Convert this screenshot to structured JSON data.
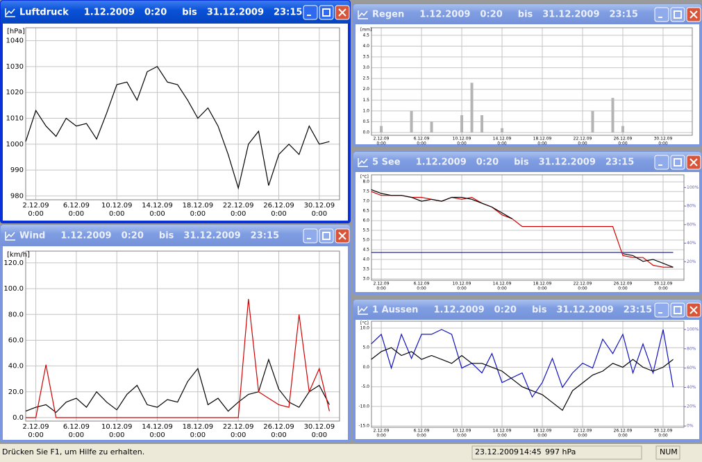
{
  "windows": [
    {
      "title": {
        "name": "Luftdruck",
        "from_date": "1.12.2009",
        "from_time": "0:20",
        "sep": "bis",
        "to_date": "31.12.2009",
        "to_time": "23:15"
      },
      "chart_data": {
        "type": "line",
        "y_label": "[hPa]",
        "xlim": [
          1,
          32
        ],
        "ylim": [
          978.5,
          1045
        ],
        "grid": true,
        "yticks": [
          980,
          990,
          1000,
          1010,
          1020,
          1030,
          1040
        ],
        "xticks": [
          {
            "value": 2,
            "label": "2.12.09"
          },
          {
            "value": 6,
            "label": "6.12.09"
          },
          {
            "value": 10,
            "label": "10.12.09"
          },
          {
            "value": 14,
            "label": "14.12.09"
          },
          {
            "value": 18,
            "label": "18.12.09"
          },
          {
            "value": 22,
            "label": "22.12.09"
          },
          {
            "value": 26,
            "label": "26.12.09"
          },
          {
            "value": 30,
            "label": "30.12.09"
          }
        ],
        "xtick_sublabels": [
          "0:00",
          "0:00",
          "0:00",
          "0:00",
          "0:00",
          "0:00",
          "0:00",
          "0:00"
        ],
        "x": [
          1,
          2,
          3,
          4,
          5,
          6,
          7,
          8,
          9,
          10,
          11,
          12,
          13,
          14,
          15,
          16,
          17,
          18,
          19,
          20,
          21,
          22,
          23,
          24,
          25,
          26,
          27,
          28,
          29,
          30,
          31
        ],
        "series": [
          {
            "color": "#000000",
            "values": [
              1001,
              1013,
              1007,
              1003,
              1010,
              1007,
              1008,
              1002,
              1012,
              1023,
              1024,
              1017,
              1028,
              1030,
              1024,
              1023,
              1017,
              1010,
              1014,
              1007,
              996,
              983,
              1000,
              1005,
              984,
              996,
              1000,
              996,
              1007,
              1000,
              1001
            ]
          }
        ]
      }
    },
    {
      "title": {
        "name": "Wind",
        "from_date": "1.12.2009",
        "from_time": "0:20",
        "sep": "bis",
        "to_date": "31.12.2009",
        "to_time": "23:15"
      },
      "chart_data": {
        "type": "line",
        "y_label": "[km/h]",
        "xlim": [
          1,
          32
        ],
        "ylim": [
          -2.7,
          129.1
        ],
        "grid": true,
        "yticks": [
          {
            "value": 0,
            "label": "0.0"
          },
          {
            "value": 20,
            "label": "20.0"
          },
          {
            "value": 40,
            "label": "40.0"
          },
          {
            "value": 60,
            "label": "60.0"
          },
          {
            "value": 80,
            "label": "80.0"
          },
          {
            "value": 100,
            "label": "100.0"
          },
          {
            "value": 120,
            "label": "120.0"
          }
        ],
        "xticks": [
          {
            "value": 2,
            "label": "2.12.09"
          },
          {
            "value": 6,
            "label": "6.12.09"
          },
          {
            "value": 10,
            "label": "10.12.09"
          },
          {
            "value": 14,
            "label": "14.12.09"
          },
          {
            "value": 18,
            "label": "18.12.09"
          },
          {
            "value": 22,
            "label": "22.12.09"
          },
          {
            "value": 26,
            "label": "26.12.09"
          },
          {
            "value": 30,
            "label": "30.12.09"
          }
        ],
        "xtick_sublabels": [
          "0:00",
          "0:00",
          "0:00",
          "0:00",
          "0:00",
          "0:00",
          "0:00",
          "0:00"
        ],
        "x": [
          1,
          2,
          3,
          4,
          5,
          6,
          7,
          8,
          9,
          10,
          11,
          12,
          13,
          14,
          15,
          16,
          17,
          18,
          19,
          20,
          21,
          22,
          23,
          24,
          25,
          26,
          27,
          28,
          29,
          30,
          31
        ],
        "series": [
          {
            "color": "#000000",
            "values": [
              5,
              8,
              10,
              4,
              12,
              15,
              8,
              20,
              12,
              6,
              18,
              25,
              10,
              8,
              14,
              12,
              28,
              38,
              10,
              15,
              5,
              12,
              18,
              20,
              45,
              22,
              12,
              8,
              20,
              25,
              10
            ]
          },
          {
            "color": "#d00000",
            "values": [
              0,
              0,
              41,
              0,
              0,
              0,
              0,
              0,
              0,
              0,
              0,
              0,
              0,
              0,
              0,
              0,
              0,
              0,
              0,
              0,
              0,
              0,
              92,
              20,
              15,
              10,
              8,
              80,
              20,
              38,
              5
            ]
          }
        ]
      }
    },
    {
      "title": {
        "name": "Regen",
        "from_date": "1.12.2009",
        "from_time": "0:20",
        "sep": "bis",
        "to_date": "31.12.2009",
        "to_time": "23:15"
      },
      "chart_data": {
        "type": "bar",
        "y_label": "[mm]",
        "xlim": [
          1.03,
          32.9
        ],
        "ylim": [
          -0.13,
          4.85
        ],
        "grid": true,
        "yticks": [
          {
            "value": 0,
            "label": "0.0"
          },
          0.5,
          {
            "value": 1,
            "label": "1.0"
          },
          1.5,
          {
            "value": 2,
            "label": "2.0"
          },
          2.5,
          {
            "value": 3,
            "label": "3.0"
          },
          3.5,
          {
            "value": 4,
            "label": "4.0"
          },
          4.5
        ],
        "xticks": [
          {
            "value": 2,
            "label": "2.12.09"
          },
          {
            "value": 6,
            "label": "6.12.09"
          },
          {
            "value": 10,
            "label": "10.12.09"
          },
          {
            "value": 14,
            "label": "14.12.09"
          },
          {
            "value": 18,
            "label": "18.12.09"
          },
          {
            "value": 22,
            "label": "22.12.09"
          },
          {
            "value": 26,
            "label": "26.12.09"
          },
          {
            "value": 30,
            "label": "30.12.09"
          }
        ],
        "xtick_sublabels": [
          "0:00",
          "0:00",
          "0:00",
          "0:00",
          "0:00",
          "0:00",
          "0:00",
          "0:00"
        ],
        "x": [
          1,
          2,
          3,
          4,
          5,
          6,
          7,
          8,
          9,
          10,
          11,
          12,
          13,
          14,
          15,
          16,
          17,
          18,
          19,
          20,
          21,
          22,
          23,
          24,
          25,
          26,
          27,
          28,
          29,
          30,
          31
        ],
        "series": [
          {
            "color": "#b4b4b4",
            "values": [
              0,
              0.3,
              0,
              0,
              1.0,
              0,
              0.5,
              0,
              0,
              0.8,
              2.3,
              0.8,
              0,
              0.2,
              0,
              0,
              0,
              0,
              0,
              0,
              0,
              0,
              1.0,
              0,
              1.6,
              0.3,
              0,
              0,
              0,
              0,
              0
            ]
          }
        ]
      }
    },
    {
      "title": {
        "name": "5 See",
        "from_date": "1.12.2009",
        "from_time": "0:20",
        "sep": "bis",
        "to_date": "31.12.2009",
        "to_time": "23:15"
      },
      "chart_data": {
        "type": "line",
        "y_label": "[°C]",
        "xlim": [
          1.03,
          32.07
        ],
        "ylim": [
          2.93,
          8.36
        ],
        "y2lim": [
          0,
          113.7
        ],
        "grid": true,
        "yticks": [
          {
            "value": 3,
            "label": "3.0"
          },
          3.5,
          {
            "value": 4,
            "label": "4.0"
          },
          4.5,
          {
            "value": 5,
            "label": "5.0"
          },
          5.5,
          {
            "value": 6,
            "label": "6.0"
          },
          6.5,
          {
            "value": 7,
            "label": "7.0"
          },
          7.5,
          {
            "value": 8,
            "label": "8.0"
          }
        ],
        "y2ticks": [
          {
            "value": 20,
            "label": "20%"
          },
          {
            "value": 40,
            "label": "40%"
          },
          {
            "value": 60,
            "label": "60%"
          },
          {
            "value": 80,
            "label": "80%"
          },
          {
            "value": 100,
            "label": "100%"
          }
        ],
        "xticks": [
          {
            "value": 2,
            "label": "2.12.09"
          },
          {
            "value": 6,
            "label": "6.12.09"
          },
          {
            "value": 10,
            "label": "10.12.09"
          },
          {
            "value": 14,
            "label": "14.12.09"
          },
          {
            "value": 18,
            "label": "18.12.09"
          },
          {
            "value": 22,
            "label": "22.12.09"
          },
          {
            "value": 26,
            "label": "26.12.09"
          },
          {
            "value": 30,
            "label": "30.12.09"
          }
        ],
        "xtick_sublabels": [
          "0:00",
          "0:00",
          "0:00",
          "0:00",
          "0:00",
          "0:00",
          "0:00",
          "0:00"
        ],
        "x": [
          1,
          2,
          3,
          4,
          5,
          6,
          7,
          8,
          9,
          10,
          11,
          12,
          13,
          14,
          15,
          16,
          17,
          18,
          19,
          20,
          21,
          22,
          23,
          24,
          25,
          26,
          27,
          28,
          29,
          30,
          31
        ],
        "series": [
          {
            "color": "#2020c0",
            "axis": "y2",
            "values": [
              30,
              30,
              30,
              30,
              30,
              30,
              30,
              30,
              30,
              30,
              30,
              30,
              30,
              30,
              30,
              30,
              30,
              30,
              30,
              30,
              30,
              30,
              30,
              30,
              30,
              30,
              30,
              30,
              30,
              30,
              30
            ]
          },
          {
            "color": "#d00000",
            "values": [
              7.5,
              7.3,
              7.3,
              7.3,
              7.2,
              7.2,
              7.1,
              7.0,
              7.2,
              7.1,
              7.2,
              6.9,
              6.7,
              6.3,
              6.1,
              5.7,
              5.7,
              5.7,
              5.7,
              5.7,
              5.7,
              5.7,
              5.7,
              5.7,
              5.7,
              4.2,
              4.1,
              4.1,
              3.7,
              3.6,
              3.6
            ]
          },
          {
            "color": "#000000",
            "values": [
              7.6,
              7.4,
              7.3,
              7.3,
              7.2,
              7.0,
              7.1,
              7.0,
              7.2,
              7.2,
              7.1,
              6.9,
              6.7,
              6.4,
              6.1,
              null,
              null,
              null,
              null,
              null,
              null,
              null,
              null,
              null,
              null,
              4.3,
              4.2,
              3.9,
              4.0,
              3.8,
              3.6
            ]
          }
        ]
      }
    },
    {
      "title": {
        "name": "1 Aussen",
        "from_date": "1.12.2009",
        "from_time": "0:20",
        "sep": "bis",
        "to_date": "31.12.2009",
        "to_time": "23:15"
      },
      "chart_data": {
        "type": "line",
        "y_label": "[°C]",
        "xlim": [
          1.03,
          32.07
        ],
        "ylim": [
          -15.35,
          11.77
        ],
        "y2lim": [
          -1.4,
          108.6
        ],
        "grid": true,
        "yticks": [
          {
            "value": -15,
            "label": "-15.0"
          },
          {
            "value": -10,
            "label": "-10.0"
          },
          {
            "value": -5,
            "label": "-5.0"
          },
          {
            "value": 0,
            "label": "0.0"
          },
          {
            "value": 5,
            "label": "5.0"
          },
          {
            "value": 10,
            "label": "10.0"
          }
        ],
        "y2ticks": [
          {
            "value": 0,
            "label": "0%"
          },
          {
            "value": 20,
            "label": "20%"
          },
          {
            "value": 40,
            "label": "40%"
          },
          {
            "value": 60,
            "label": "60%"
          },
          {
            "value": 80,
            "label": "80%"
          },
          {
            "value": 100,
            "label": "100%"
          }
        ],
        "xticks": [
          {
            "value": 2,
            "label": "2.12.09"
          },
          {
            "value": 6,
            "label": "6.12.09"
          },
          {
            "value": 10,
            "label": "10.12.09"
          },
          {
            "value": 14,
            "label": "14.12.09"
          },
          {
            "value": 18,
            "label": "18.12.09"
          },
          {
            "value": 22,
            "label": "22.12.09"
          },
          {
            "value": 26,
            "label": "26.12.09"
          },
          {
            "value": 30,
            "label": "30.12.09"
          }
        ],
        "xtick_sublabels": [
          "0:00",
          "0:00",
          "0:00",
          "0:00",
          "0:00",
          "0:00",
          "0:00",
          "0:00"
        ],
        "x": [
          1,
          2,
          3,
          4,
          5,
          6,
          7,
          8,
          9,
          10,
          11,
          12,
          13,
          14,
          15,
          16,
          17,
          18,
          19,
          20,
          21,
          22,
          23,
          24,
          25,
          26,
          27,
          28,
          29,
          30,
          31
        ],
        "series": [
          {
            "color": "#1010c0",
            "axis": "y2",
            "values": [
              85,
              95,
              60,
              95,
              70,
              95,
              95,
              100,
              95,
              60,
              65,
              55,
              75,
              45,
              50,
              55,
              30,
              45,
              70,
              40,
              55,
              65,
              60,
              90,
              75,
              95,
              55,
              85,
              55,
              100,
              40
            ]
          },
          {
            "color": "#000000",
            "values": [
              2,
              4,
              5,
              3,
              4,
              2,
              3,
              2,
              1,
              3,
              1,
              1,
              0,
              -1,
              -3,
              -5,
              -6,
              -7,
              -9,
              -11,
              -6,
              -4,
              -2,
              -1,
              1,
              0,
              2,
              0,
              -1,
              0,
              2
            ]
          }
        ]
      }
    }
  ],
  "status_bar": {
    "help": "Drücken Sie F1, um Hilfe zu erhalten.",
    "date": "23.12.2009",
    "time": "14:45",
    "pressure": "997 hPa",
    "num": "NUM"
  }
}
